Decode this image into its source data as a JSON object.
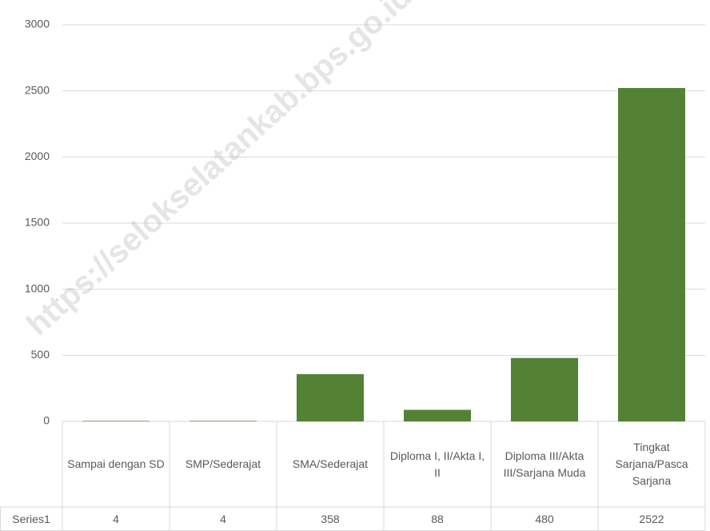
{
  "chart_data": {
    "type": "bar",
    "categories": [
      "Sampai dengan SD",
      "SMP/Sederajat",
      "SMA/Sederajat",
      "Diploma I, II/Akta I, II",
      "Diploma III/Akta III/Sarjana Muda",
      "Tingkat Sarjana/Pasca Sarjana"
    ],
    "series": [
      {
        "name": "Series1",
        "color": "#548235",
        "values": [
          4,
          4,
          358,
          88,
          480,
          2522
        ]
      }
    ],
    "ylim": [
      0,
      3000
    ],
    "yticks": [
      0,
      500,
      1000,
      1500,
      2000,
      2500,
      3000
    ],
    "grid": true,
    "watermark": "https://selokselatankab.bps.go.id"
  }
}
